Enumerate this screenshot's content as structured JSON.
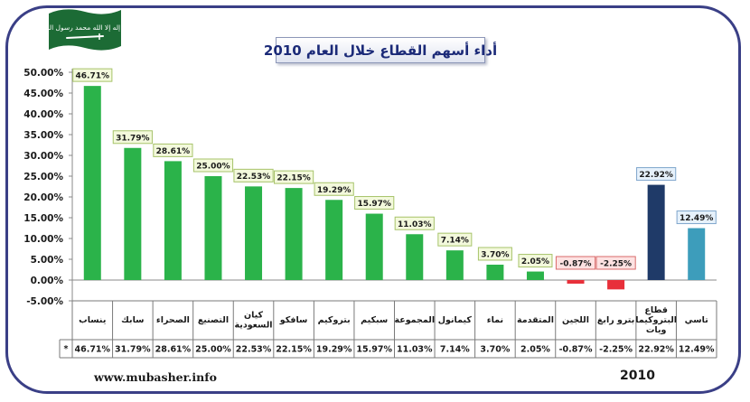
{
  "title": "أداء أسهم القطاع خلال العام 2010",
  "footer": {
    "site": "www.mubasher.info",
    "year": "2010"
  },
  "flag": {
    "shahada": "لا إله إلا الله محمد رسول الله"
  },
  "table": {
    "row_marker": "*"
  },
  "colors": {
    "frame": "#3a3f86",
    "positive": "#2bb34a",
    "negative": "#e8303a",
    "sector": "#1f3a68",
    "tasi": "#3d9dbb",
    "flag": "#1c6b35"
  },
  "chart_data": {
    "type": "bar",
    "title": "أداء أسهم القطاع خلال العام 2010",
    "xlabel": "",
    "ylabel": "",
    "ylim": [
      -5,
      50
    ],
    "yticks": [
      "50.00%",
      "45.00%",
      "40.00%",
      "35.00%",
      "30.00%",
      "25.00%",
      "20.00%",
      "15.00%",
      "10.00%",
      "5.00%",
      "0.00%",
      "-5.00%"
    ],
    "ytick_values": [
      50,
      45,
      40,
      35,
      30,
      25,
      20,
      15,
      10,
      5,
      0,
      -5
    ],
    "grid": false,
    "categories": [
      [
        "ينساب"
      ],
      [
        "سابك"
      ],
      [
        "الصحراء"
      ],
      [
        "التصنيع"
      ],
      [
        "كيان",
        "السعودية"
      ],
      [
        "سافكو"
      ],
      [
        "بتروكيم"
      ],
      [
        "سبكيم"
      ],
      [
        "المجموعة"
      ],
      [
        "كيمانول"
      ],
      [
        "نماء"
      ],
      [
        "المتقدمة"
      ],
      [
        "اللجين"
      ],
      [
        "بترو رابغ"
      ],
      [
        "قطاع",
        "البتروكيما",
        "ويات"
      ],
      [
        "تاسي"
      ]
    ],
    "values": [
      46.71,
      31.79,
      28.61,
      25.0,
      22.53,
      22.15,
      19.29,
      15.97,
      11.03,
      7.14,
      3.7,
      2.05,
      -0.87,
      -2.25,
      22.92,
      12.49
    ],
    "labels": [
      "46.71%",
      "31.79%",
      "28.61%",
      "25.00%",
      "22.53%",
      "22.15%",
      "19.29%",
      "15.97%",
      "11.03%",
      "7.14%",
      "3.70%",
      "2.05%",
      "-0.87%",
      "-2.25%",
      "22.92%",
      "12.49%"
    ],
    "bar_kinds": [
      "pos",
      "pos",
      "pos",
      "pos",
      "pos",
      "pos",
      "pos",
      "pos",
      "pos",
      "pos",
      "pos",
      "pos",
      "neg",
      "neg",
      "sector",
      "tasi"
    ]
  }
}
